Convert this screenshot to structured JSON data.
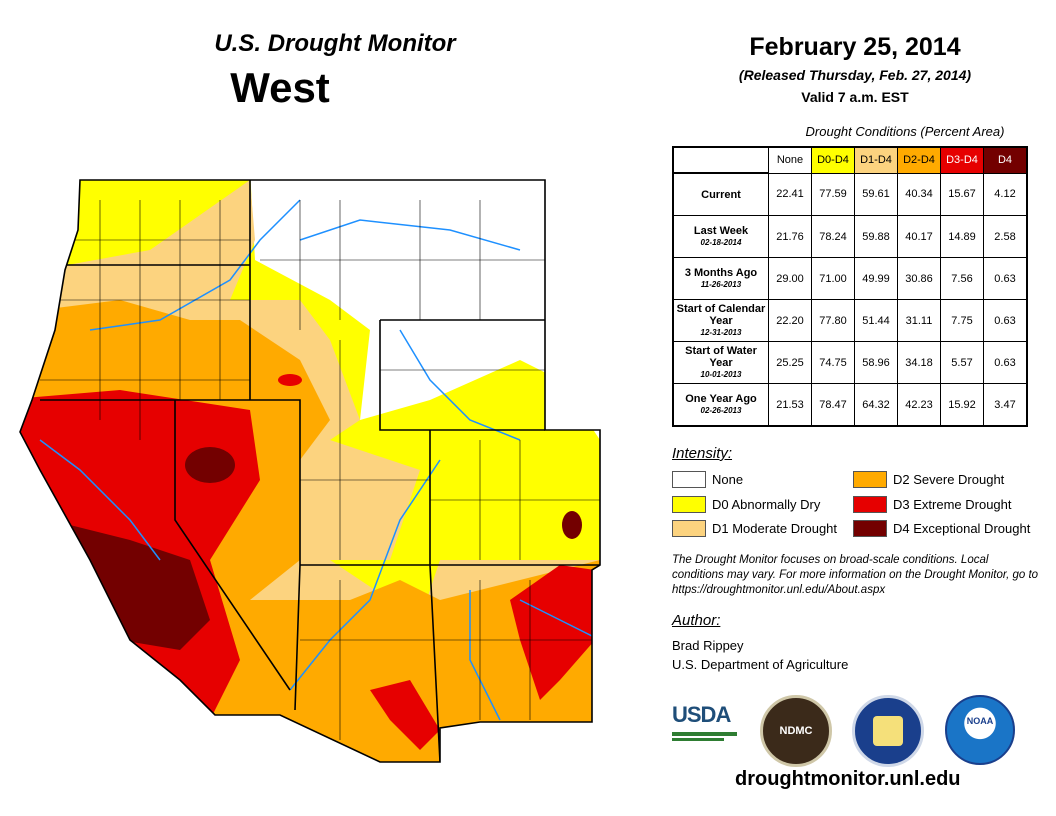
{
  "header": {
    "title": "U.S. Drought Monitor",
    "region": "West",
    "date": "February 25, 2014",
    "released": "(Released Thursday, Feb. 27, 2014)",
    "valid": "Valid 7 a.m. EST"
  },
  "table": {
    "caption": "Drought Conditions (Percent Area)",
    "columns": [
      "None",
      "D0-D4",
      "D1-D4",
      "D2-D4",
      "D3-D4",
      "D4"
    ],
    "column_colors": [
      "#ffffff",
      "#ffff00",
      "#fcd37f",
      "#ffaa00",
      "#e60000",
      "#730000"
    ],
    "rows": [
      {
        "label": "Current",
        "date": "",
        "values": [
          "22.41",
          "77.59",
          "59.61",
          "40.34",
          "15.67",
          "4.12"
        ]
      },
      {
        "label": "Last Week",
        "date": "02-18-2014",
        "values": [
          "21.76",
          "78.24",
          "59.88",
          "40.17",
          "14.89",
          "2.58"
        ]
      },
      {
        "label": "3 Months Ago",
        "date": "11-26-2013",
        "values": [
          "29.00",
          "71.00",
          "49.99",
          "30.86",
          "7.56",
          "0.63"
        ]
      },
      {
        "label": "Start of Calendar Year",
        "date": "12-31-2013",
        "values": [
          "22.20",
          "77.80",
          "51.44",
          "31.11",
          "7.75",
          "0.63"
        ]
      },
      {
        "label": "Start of Water Year",
        "date": "10-01-2013",
        "values": [
          "25.25",
          "74.75",
          "58.96",
          "34.18",
          "5.57",
          "0.63"
        ]
      },
      {
        "label": "One Year Ago",
        "date": "02-26-2013",
        "values": [
          "21.53",
          "78.47",
          "64.32",
          "42.23",
          "15.92",
          "3.47"
        ]
      }
    ]
  },
  "legend": {
    "title": "Intensity:",
    "items": [
      {
        "label": "None",
        "color": "#ffffff"
      },
      {
        "label": "D0 Abnormally Dry",
        "color": "#ffff00"
      },
      {
        "label": "D1 Moderate Drought",
        "color": "#fcd37f"
      },
      {
        "label": "D2 Severe Drought",
        "color": "#ffaa00"
      },
      {
        "label": "D3 Extreme Drought",
        "color": "#e60000"
      },
      {
        "label": "D4 Exceptional Drought",
        "color": "#730000"
      }
    ]
  },
  "note": "The Drought Monitor focuses on broad-scale conditions. Local conditions may vary. For more information on the Drought Monitor, go to https://droughtmonitor.unl.edu/About.aspx",
  "author": {
    "title": "Author:",
    "name": "Brad Rippey",
    "org": "U.S. Department of Agriculture"
  },
  "logos": {
    "usda": "USDA",
    "ndmc": "NDMC",
    "noaa": "NOAA"
  },
  "url": "droughtmonitor.unl.edu"
}
